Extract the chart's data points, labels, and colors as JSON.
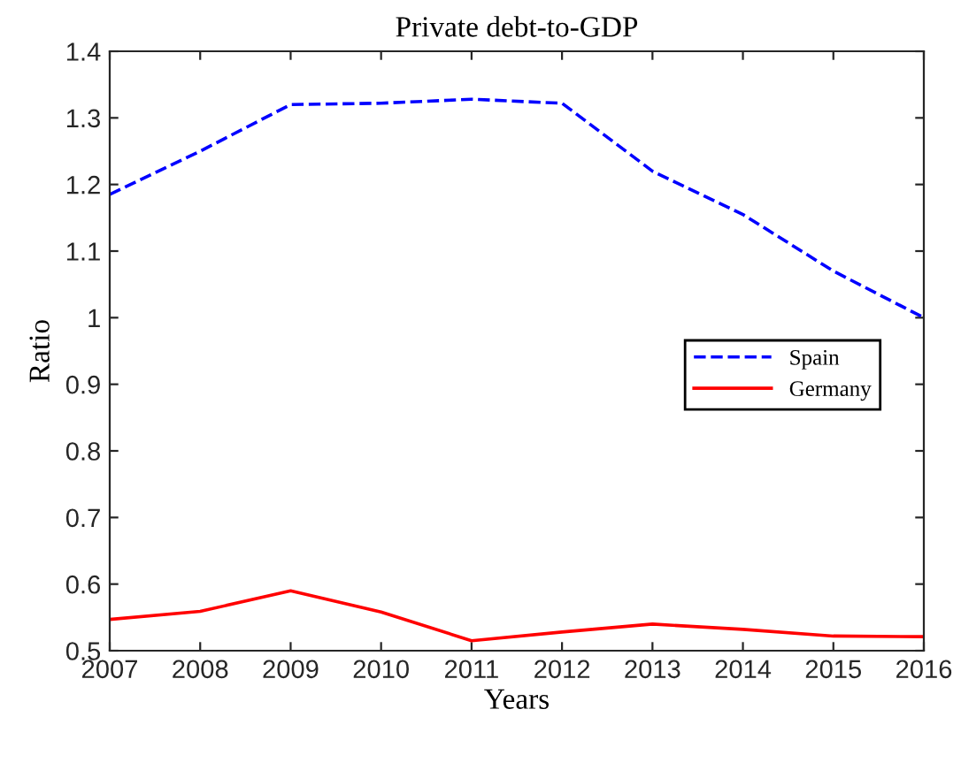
{
  "chart_data": {
    "type": "line",
    "title": "Private debt-to-GDP",
    "xlabel": "Years",
    "ylabel": "Ratio",
    "x": [
      2007,
      2008,
      2009,
      2010,
      2011,
      2012,
      2013,
      2014,
      2015,
      2016
    ],
    "series": [
      {
        "name": "Spain",
        "color": "#0000ff",
        "line_style": "dashed",
        "values": [
          1.185,
          1.25,
          1.32,
          1.322,
          1.328,
          1.322,
          1.22,
          1.155,
          1.07,
          1.0
        ]
      },
      {
        "name": "Germany",
        "color": "#ff0000",
        "line_style": "solid",
        "values": [
          0.547,
          0.559,
          0.59,
          0.558,
          0.515,
          0.528,
          0.54,
          0.532,
          0.522,
          0.521
        ]
      }
    ],
    "xlim": [
      2007,
      2016
    ],
    "xticks": [
      2007,
      2008,
      2009,
      2010,
      2011,
      2012,
      2013,
      2014,
      2015,
      2016
    ],
    "ylim": [
      0.5,
      1.4
    ],
    "yticks": [
      0.5,
      0.6,
      0.7,
      0.8,
      0.9,
      1,
      1.1,
      1.2,
      1.3,
      1.4
    ],
    "grid": false,
    "legend": "right",
    "marker": "none"
  }
}
